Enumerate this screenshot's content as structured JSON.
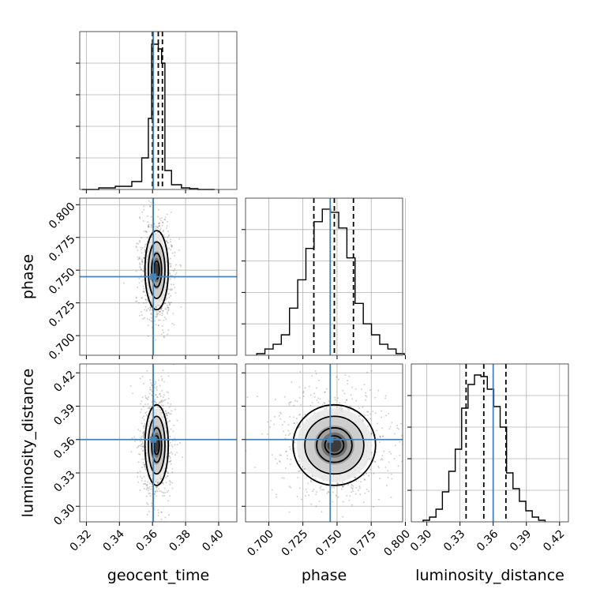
{
  "chart_data": {
    "type": "corner",
    "parameters": [
      "geocent_time",
      "phase",
      "luminosity_distance"
    ],
    "truths": {
      "geocent_time": 0.3605,
      "phase": 0.745,
      "luminosity_distance": 0.36
    },
    "colors": {
      "truth": "#4682b4",
      "hist": "#000000",
      "grid": "#b0b0b0"
    },
    "grid": true,
    "panels": [
      {
        "id": "hist-geocent_time",
        "row": 0,
        "col": 0,
        "kind": "hist",
        "xlim": [
          0.316,
          0.411
        ],
        "xticks": [
          0.32,
          0.34,
          0.36,
          0.38,
          0.4
        ],
        "tick_labels": [],
        "ymax": 1.0,
        "bin_edges": [
          0.3175,
          0.3275,
          0.3375,
          0.3475,
          0.3535,
          0.3575,
          0.3595,
          0.3615,
          0.3635,
          0.3655,
          0.3675,
          0.3715,
          0.3775,
          0.3825,
          0.3875,
          0.3925,
          0.3975
        ],
        "counts": [
          0.0,
          0.01,
          0.02,
          0.05,
          0.2,
          0.45,
          0.92,
          0.92,
          0.89,
          0.8,
          0.12,
          0.03,
          0.01,
          0.005,
          0.0,
          0.0
        ],
        "quantiles": [
          0.36,
          0.3635,
          0.366
        ]
      },
      {
        "id": "scatter-phase-geocent_time",
        "row": 1,
        "col": 0,
        "kind": "2d",
        "xlim": [
          0.316,
          0.411
        ],
        "ylim": [
          0.685,
          0.805
        ],
        "xticks": [
          0.32,
          0.34,
          0.36,
          0.38,
          0.4
        ],
        "yticks": [
          0.7,
          0.725,
          0.75,
          0.775,
          0.8
        ],
        "ytick_labels": [
          "0.700",
          "0.725",
          "0.750",
          "0.775",
          "0.800"
        ],
        "center": [
          0.3625,
          0.75
        ],
        "sigma": [
          0.0035,
          0.015
        ]
      },
      {
        "id": "hist-phase",
        "row": 1,
        "col": 1,
        "kind": "hist",
        "xlim": [
          0.683,
          0.798
        ],
        "xticks": [
          0.7,
          0.725,
          0.75,
          0.775,
          0.8
        ],
        "tick_labels": [],
        "ymax": 1.0,
        "bin_edges": [
          0.6912,
          0.6972,
          0.7032,
          0.7092,
          0.7152,
          0.7212,
          0.7272,
          0.7332,
          0.7392,
          0.7452,
          0.7512,
          0.7572,
          0.7632,
          0.7692,
          0.7752,
          0.7812,
          0.7872,
          0.7932,
          0.7992
        ],
        "counts": [
          0.01,
          0.04,
          0.07,
          0.13,
          0.3,
          0.48,
          0.68,
          0.85,
          0.93,
          0.91,
          0.81,
          0.62,
          0.33,
          0.2,
          0.13,
          0.07,
          0.04,
          0.01
        ],
        "quantiles": [
          0.733,
          0.748,
          0.762
        ]
      },
      {
        "id": "scatter-ld-geocent_time",
        "row": 2,
        "col": 0,
        "kind": "2d",
        "xlim": [
          0.316,
          0.411
        ],
        "ylim": [
          0.286,
          0.428
        ],
        "xticks": [
          0.32,
          0.34,
          0.36,
          0.38,
          0.4
        ],
        "xtick_labels": [
          "0.32",
          "0.34",
          "0.36",
          "0.38",
          "0.40"
        ],
        "yticks": [
          0.3,
          0.33,
          0.36,
          0.39,
          0.42
        ],
        "ytick_labels": [
          "0.30",
          "0.33",
          "0.36",
          "0.39",
          "0.42"
        ],
        "center": [
          0.3625,
          0.355
        ],
        "sigma": [
          0.0035,
          0.018
        ]
      },
      {
        "id": "scatter-ld-phase",
        "row": 2,
        "col": 1,
        "kind": "2d",
        "xlim": [
          0.683,
          0.798
        ],
        "ylim": [
          0.286,
          0.428
        ],
        "xticks": [
          0.7,
          0.725,
          0.75,
          0.775,
          0.8
        ],
        "xtick_labels": [
          "0.700",
          "0.725",
          "0.750",
          "0.775",
          "0.800"
        ],
        "yticks": [
          0.3,
          0.33,
          0.36,
          0.39,
          0.42
        ],
        "ytick_labels": [],
        "center": [
          0.748,
          0.355
        ],
        "sigma": [
          0.015,
          0.018
        ]
      },
      {
        "id": "hist-luminosity_distance",
        "row": 2,
        "col": 2,
        "kind": "hist",
        "xlim": [
          0.286,
          0.428
        ],
        "xticks": [
          0.3,
          0.33,
          0.36,
          0.39,
          0.42
        ],
        "tick_labels": [
          "0.30",
          "0.33",
          "0.36",
          "0.39",
          "0.42"
        ],
        "ymax": 1.0,
        "bin_edges": [
          0.2967,
          0.3025,
          0.3083,
          0.3141,
          0.3199,
          0.3257,
          0.3315,
          0.3373,
          0.3431,
          0.3489,
          0.3547,
          0.3605,
          0.3663,
          0.3721,
          0.3779,
          0.3837,
          0.3895,
          0.3953,
          0.4011,
          0.4069
        ],
        "counts": [
          0.01,
          0.03,
          0.08,
          0.19,
          0.32,
          0.46,
          0.72,
          0.87,
          0.93,
          0.92,
          0.84,
          0.73,
          0.6,
          0.31,
          0.21,
          0.13,
          0.07,
          0.03,
          0.01
        ],
        "quantiles": [
          0.3355,
          0.3515,
          0.3715
        ]
      }
    ],
    "axis_labels": {
      "x": [
        "geocent_time",
        "phase",
        "luminosity_distance"
      ],
      "y": [
        "",
        "phase",
        "luminosity_distance"
      ]
    }
  }
}
